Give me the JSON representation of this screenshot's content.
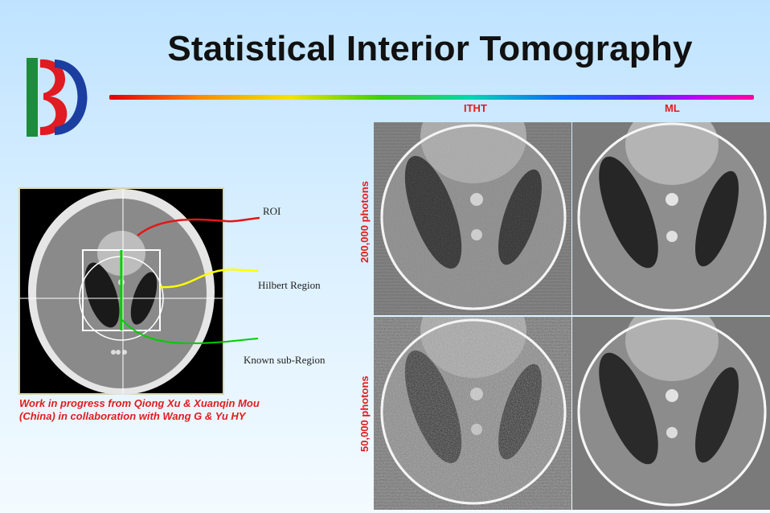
{
  "slide": {
    "title": "Statistical Interior Tomography",
    "caption_line1": "Work in progress from Qiong Xu & Xuanqin Mou",
    "caption_line2": "(China) in collaboration with Wang G & Yu HY"
  },
  "diagram": {
    "labels": {
      "roi": "ROI",
      "hilbert": "Hilbert Region",
      "known": "Known sub-Region"
    },
    "colors": {
      "roi": "#e01818",
      "hilbert": "#ffff00",
      "known": "#00cc00"
    }
  },
  "results": {
    "columns": [
      "ITHT",
      "ML"
    ],
    "rows": [
      "200,000 photons",
      "50,000 photons"
    ]
  },
  "colors": {
    "label_red": "#e21c1c",
    "logo_green": "#1e8c3a",
    "logo_red": "#e01b22",
    "logo_blue": "#1b3ea0"
  }
}
